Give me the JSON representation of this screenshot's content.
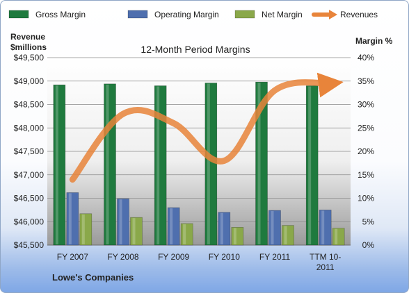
{
  "chart_data": {
    "type": "bar",
    "title": "12-Month Period Margins",
    "company": "Lowe's Companies",
    "y_left_label_line1": "Revenue",
    "y_left_label_line2": "$millions",
    "y_right_label": "Margin %",
    "categories": [
      "FY 2007",
      "FY 2008",
      "FY 2009",
      "FY 2010",
      "FY 2011",
      "TTM 10-2011"
    ],
    "category_lines": [
      [
        "FY 2007"
      ],
      [
        "FY 2008"
      ],
      [
        "FY 2009"
      ],
      [
        "FY 2010"
      ],
      [
        "FY 2011"
      ],
      [
        "TTM 10-",
        "2011"
      ]
    ],
    "left_axis": {
      "min": 45500,
      "max": 49500,
      "ticks": [
        "$45,500",
        "$46,000",
        "$46,500",
        "$47,000",
        "$47,500",
        "$48,000",
        "$48,500",
        "$49,000",
        "$49,500"
      ]
    },
    "right_axis": {
      "min": 0,
      "max": 40,
      "ticks": [
        "0%",
        "5%",
        "10%",
        "15%",
        "20%",
        "25%",
        "30%",
        "35%",
        "40%"
      ]
    },
    "series": [
      {
        "name": "Gross Margin",
        "axis": "right",
        "kind": "bar",
        "color": "#1f7a3e",
        "values": [
          34.2,
          34.4,
          34.0,
          34.6,
          34.8,
          34.0
        ]
      },
      {
        "name": "Operating Margin",
        "axis": "right",
        "kind": "bar",
        "color": "#4f6fae",
        "values": [
          11.2,
          9.9,
          8.0,
          7.0,
          7.4,
          7.5
        ]
      },
      {
        "name": "Net Margin",
        "axis": "right",
        "kind": "bar",
        "color": "#8aa84a",
        "values": [
          6.7,
          5.9,
          4.6,
          3.8,
          4.2,
          3.6
        ]
      },
      {
        "name": "Revenues",
        "axis": "left",
        "kind": "line",
        "color": "#e8843a",
        "values": [
          46900,
          48300,
          48100,
          47300,
          48800,
          48950
        ]
      }
    ],
    "grid": true,
    "legend_position": "top"
  }
}
